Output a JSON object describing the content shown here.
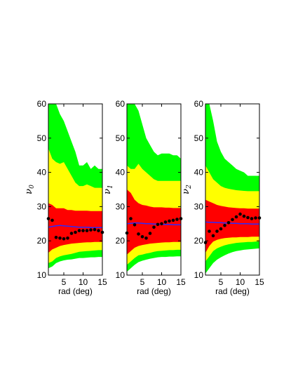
{
  "chart_data": [
    {
      "type": "area",
      "ylabel": "ν",
      "ylabel_sub": "0",
      "xlabel": "rad (deg)",
      "xlim": [
        1,
        15
      ],
      "ylim": [
        10,
        60
      ],
      "x_ticks": [
        "5",
        "10",
        "15"
      ],
      "y_ticks": [
        "10",
        "20",
        "30",
        "40",
        "50",
        "60"
      ],
      "x": [
        1,
        2,
        3,
        4,
        5,
        6,
        7,
        8,
        9,
        10,
        11,
        12,
        13,
        14,
        15
      ],
      "bands": [
        {
          "color": "#00ff00",
          "lower": [
            12.0,
            12.5,
            13.5,
            14.0,
            14.3,
            14.5,
            14.6,
            14.8,
            15.0,
            15.0,
            15.1,
            15.2,
            15.2,
            15.3,
            15.3
          ],
          "upper": [
            60,
            60,
            60,
            57,
            55,
            52,
            49,
            46,
            42,
            42,
            43,
            41,
            42,
            41,
            41
          ]
        },
        {
          "color": "#ffff00",
          "lower": [
            13.5,
            14.0,
            15.0,
            15.5,
            15.8,
            16.0,
            16.2,
            16.5,
            16.8,
            16.9,
            17.0,
            17.1,
            17.2,
            17.3,
            17.3
          ],
          "upper": [
            47,
            44,
            43,
            42.5,
            43,
            41,
            39,
            37,
            36,
            36,
            36.5,
            36,
            35.5,
            35.5,
            35.5
          ]
        },
        {
          "color": "#ff0000",
          "lower": [
            16.5,
            17.5,
            18.0,
            18.5,
            18.8,
            19.0,
            19.2,
            19.3,
            19.4,
            19.5,
            19.6,
            19.6,
            19.7,
            19.7,
            19.7
          ],
          "upper": [
            31,
            30.5,
            29.5,
            29.5,
            29.5,
            29.0,
            29.0,
            28.8,
            28.8,
            28.8,
            28.8,
            28.7,
            28.7,
            28.7,
            28.7
          ]
        }
      ],
      "median": [
        24.0,
        24.2,
        24.4,
        24.5,
        24.4,
        24.3,
        24.2,
        24.1,
        24.0,
        24.0,
        24.0,
        23.9,
        23.9,
        23.9,
        23.9
      ],
      "observed": [
        26.5,
        26.0,
        21.0,
        20.8,
        20.6,
        20.8,
        22.2,
        22.5,
        23.0,
        23.0,
        23.0,
        23.2,
        23.3,
        23.0,
        22.5
      ]
    },
    {
      "type": "area",
      "ylabel": "ν",
      "ylabel_sub": "1",
      "xlabel": "rad (deg)",
      "xlim": [
        1,
        15
      ],
      "ylim": [
        10,
        60
      ],
      "x_ticks": [
        "5",
        "10",
        "15"
      ],
      "y_ticks": [
        "10",
        "20",
        "30",
        "40",
        "50",
        "60"
      ],
      "x": [
        1,
        2,
        3,
        4,
        5,
        6,
        7,
        8,
        9,
        10,
        11,
        12,
        13,
        14,
        15
      ],
      "bands": [
        {
          "color": "#00ff00",
          "lower": [
            11.0,
            12.0,
            13.0,
            13.8,
            14.2,
            14.5,
            14.8,
            15.0,
            15.2,
            15.3,
            15.3,
            15.4,
            15.4,
            15.5,
            15.5
          ],
          "upper": [
            60,
            60,
            60,
            58,
            54,
            50,
            48,
            46,
            45,
            45.5,
            45.5,
            45.5,
            45,
            45,
            44
          ]
        },
        {
          "color": "#ffff00",
          "lower": [
            13.0,
            14.0,
            15.0,
            15.8,
            16.0,
            16.3,
            16.5,
            16.8,
            17.0,
            17.1,
            17.2,
            17.3,
            17.3,
            17.4,
            17.4
          ],
          "upper": [
            42,
            41,
            41,
            42.5,
            41,
            40,
            39,
            38,
            37.5,
            37.5,
            37.5,
            37.5,
            37.5,
            37.5,
            37.5
          ]
        },
        {
          "color": "#ff0000",
          "lower": [
            16.0,
            17.0,
            18.0,
            18.5,
            18.8,
            19.0,
            19.2,
            19.3,
            19.4,
            19.5,
            19.6,
            19.6,
            19.7,
            19.7,
            19.7
          ],
          "upper": [
            35,
            34,
            32,
            31,
            30.5,
            30.3,
            30.0,
            29.8,
            29.8,
            29.8,
            29.7,
            29.7,
            29.6,
            29.6,
            29.6
          ]
        }
      ],
      "median": [
        25.0,
        25.1,
        25.2,
        25.2,
        25.1,
        25.0,
        25.0,
        24.9,
        24.9,
        24.8,
        24.8,
        24.8,
        24.7,
        24.7,
        24.7
      ],
      "observed": [
        22.3,
        26.5,
        24.7,
        22.0,
        21.2,
        20.8,
        22.2,
        24.0,
        24.8,
        25.0,
        25.5,
        25.8,
        26.0,
        26.3,
        26.5
      ]
    },
    {
      "type": "area",
      "ylabel": "ν",
      "ylabel_sub": "2",
      "xlabel": "rad (deg)",
      "xlim": [
        1,
        15
      ],
      "ylim": [
        10,
        60
      ],
      "x_ticks": [
        "5",
        "10",
        "15"
      ],
      "y_ticks": [
        "10",
        "20",
        "30",
        "40",
        "50",
        "60"
      ],
      "x": [
        1,
        2,
        3,
        4,
        5,
        6,
        7,
        8,
        9,
        10,
        11,
        12,
        13,
        14,
        15
      ],
      "bands": [
        {
          "color": "#00ff00",
          "lower": [
            10.5,
            12.0,
            13.5,
            14.5,
            15.2,
            15.8,
            16.3,
            16.7,
            17.0,
            17.2,
            17.4,
            17.5,
            17.6,
            17.7,
            17.8
          ],
          "upper": [
            60,
            60,
            55,
            49,
            46,
            44,
            43,
            42,
            41,
            40.5,
            40,
            39,
            39,
            39,
            39
          ]
        },
        {
          "color": "#ffff00",
          "lower": [
            14.0,
            15.5,
            17.0,
            17.8,
            18.3,
            18.7,
            19.0,
            19.2,
            19.4,
            19.5,
            19.6,
            19.7,
            19.7,
            19.8,
            19.8
          ],
          "upper": [
            42,
            40,
            38,
            37,
            36,
            35.5,
            35.2,
            35.0,
            34.8,
            34.7,
            34.6,
            34.5,
            34.5,
            34.5,
            34.5
          ]
        },
        {
          "color": "#ff0000",
          "lower": [
            16.5,
            18.5,
            19.8,
            20.3,
            20.6,
            20.8,
            20.9,
            21.0,
            21.0,
            21.1,
            21.1,
            21.1,
            21.2,
            21.2,
            21.2
          ],
          "upper": [
            32,
            31.5,
            31.0,
            30.5,
            30.2,
            30.0,
            29.8,
            29.7,
            29.6,
            29.5,
            29.5,
            29.4,
            29.4,
            29.4,
            29.4
          ]
        }
      ],
      "median": [
        25.5,
        25.4,
        25.4,
        25.3,
        25.3,
        25.2,
        25.2,
        25.1,
        25.1,
        25.0,
        25.0,
        25.0,
        24.9,
        24.9,
        24.9
      ],
      "observed": [
        19.5,
        22.8,
        21.5,
        22.8,
        23.5,
        24.5,
        25.3,
        26.2,
        27.0,
        27.8,
        27.2,
        26.8,
        26.5,
        26.7,
        26.7
      ]
    }
  ]
}
